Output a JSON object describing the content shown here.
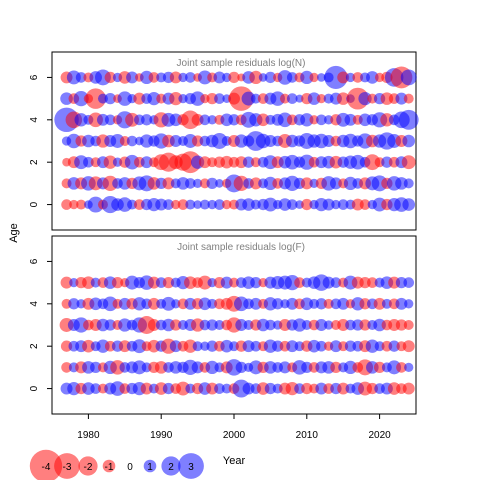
{
  "chart_data": [
    {
      "type": "scatter",
      "title": "Joint sample residuals log(N)",
      "xlim": [
        1975,
        2025
      ],
      "ylim": [
        -1.2,
        7.2
      ],
      "y_ticks": [
        "0",
        "2",
        "4",
        "6"
      ],
      "ages": [
        0,
        1,
        2,
        3,
        4,
        5,
        6
      ],
      "years": [
        1977,
        2024
      ],
      "encoding": "bubble size = |residual|; red = negative, blue = positive",
      "residuals": {
        "age6": [
          -0.9,
          1.2,
          0.7,
          -0.6,
          1.0,
          1.5,
          -0.8,
          0.5,
          -1.0,
          0.9,
          -0.4,
          1.1,
          -0.7,
          0.6,
          0.8,
          -0.9,
          0.5,
          0.7,
          -0.4,
          1.2,
          -0.6,
          0.9,
          0.5,
          -0.8,
          -0.3,
          1.0,
          -1.1,
          0.4,
          0.8,
          -0.5,
          1.3,
          0.7,
          -0.6,
          1.1,
          -0.5,
          0.4,
          0.6,
          2.6,
          -0.9,
          0.5,
          -0.7,
          0.6,
          1.0,
          -0.5,
          -0.8,
          1.9,
          -2.4,
          1.5
        ],
        "age5": [
          1.0,
          -0.7,
          1.4,
          -0.5,
          -2.2,
          0.6,
          0.8,
          -0.4,
          1.3,
          0.5,
          -0.9,
          0.7,
          1.1,
          -0.6,
          0.9,
          -1.1,
          0.5,
          0.8,
          1.3,
          -0.5,
          -0.8,
          0.7,
          0.4,
          -0.9,
          -2.8,
          1.2,
          0.6,
          -0.7,
          0.9,
          1.3,
          -0.6,
          0.7,
          0.3,
          -0.8,
          1.0,
          -0.5,
          0.6,
          0.9,
          -1.0,
          0.4,
          -2.4,
          1.1,
          -0.6,
          0.8,
          -1.0,
          -0.7,
          0.9,
          -0.6
        ],
        "age4": [
          2.8,
          -1.6,
          1.1,
          0.6,
          -1.3,
          0.9,
          0.7,
          -0.5,
          1.7,
          -1.2,
          0.7,
          0.8,
          0.5,
          -1.4,
          1.2,
          1.0,
          -0.8,
          -1.9,
          -0.9,
          0.7,
          0.5,
          -0.6,
          1.0,
          0.8,
          -0.7,
          1.5,
          1.1,
          -1.0,
          0.6,
          0.9,
          1.3,
          -0.7,
          0.8,
          1.1,
          -0.5,
          0.7,
          0.5,
          -0.8,
          1.2,
          0.9,
          -0.6,
          1.0,
          0.8,
          1.4,
          -1.1,
          0.7,
          1.6,
          2.1
        ],
        "age3": [
          0.5,
          1.3,
          -0.8,
          1.0,
          0.7,
          -1.1,
          0.9,
          1.2,
          -0.6,
          0.7,
          0.4,
          1.1,
          0.8,
          1.4,
          -1.0,
          0.9,
          0.6,
          1.2,
          -0.8,
          0.7,
          1.0,
          1.5,
          0.6,
          -0.9,
          1.1,
          0.8,
          2.1,
          1.3,
          0.9,
          0.7,
          -1.2,
          1.0,
          0.8,
          1.5,
          1.1,
          1.3,
          0.9,
          -0.7,
          1.0,
          1.3,
          0.8,
          1.4,
          -1.0,
          1.1,
          1.7,
          1.2,
          -0.9,
          1.0
        ],
        "age2": [
          -0.4,
          -0.9,
          1.2,
          0.7,
          -0.6,
          0.9,
          -1.1,
          0.5,
          -0.8,
          1.3,
          -0.7,
          0.9,
          -0.6,
          -1.5,
          -2.0,
          -1.2,
          -1.7,
          -2.4,
          1.1,
          -0.9,
          -0.6,
          -0.8,
          -1.0,
          -0.7,
          -0.9,
          0.8,
          -0.6,
          0.7,
          1.2,
          -0.9,
          1.0,
          1.3,
          0.8,
          1.4,
          -0.7,
          0.9,
          1.0,
          -1.0,
          0.8,
          1.1,
          1.3,
          0.7,
          -1.5,
          -0.6,
          0.8,
          -0.7,
          0.9,
          -1.2
        ],
        "age1": [
          -0.6,
          1.0,
          -0.9,
          1.3,
          -1.2,
          0.9,
          -1.4,
          0.7,
          1.0,
          -0.8,
          1.2,
          1.5,
          -1.0,
          0.8,
          -0.9,
          0.6,
          1.0,
          0.7,
          0.5,
          -0.6,
          0.8,
          0.4,
          -0.5,
          1.8,
          -1.4,
          0.7,
          -0.9,
          0.6,
          1.1,
          -0.7,
          0.9,
          1.4,
          0.8,
          -0.9,
          0.5,
          -0.8,
          1.3,
          0.9,
          -0.6,
          1.1,
          0.7,
          -0.9,
          1.2,
          1.5,
          -0.8,
          1.3,
          1.0,
          0.6
        ],
        "age0": [
          -0.7,
          -0.5,
          -0.6,
          0.4,
          1.5,
          -0.6,
          1.7,
          1.0,
          1.3,
          0.6,
          -0.7,
          0.8,
          1.1,
          0.9,
          0.7,
          -0.5,
          -0.7,
          0.6,
          0.4,
          0.6,
          0.5,
          0.7,
          -0.5,
          -0.6,
          0.9,
          1.0,
          0.6,
          0.8,
          1.2,
          0.5,
          1.0,
          0.7,
          0.4,
          -0.8,
          0.5,
          1.1,
          0.9,
          0.5,
          0.7,
          0.6,
          -0.9,
          -0.7,
          0.5,
          1.2,
          -0.8,
          1.1,
          1.3,
          1.0
        ]
      }
    },
    {
      "type": "scatter",
      "title": "Joint sample residuals log(F)",
      "xlim": [
        1975,
        2025
      ],
      "ylim": [
        -1.2,
        7.2
      ],
      "y_ticks": [
        "0",
        "2",
        "4",
        "6"
      ],
      "ages": [
        0,
        1,
        2,
        3,
        4,
        5
      ],
      "years": [
        1977,
        2024
      ],
      "encoding": "bubble size = |residual|; red = negative, blue = positive",
      "residuals": {
        "age5": [
          -0.9,
          0.5,
          -0.8,
          -1.0,
          0.6,
          -0.7,
          1.0,
          -0.8,
          -0.5,
          1.2,
          0.8,
          1.3,
          -0.9,
          0.7,
          -0.8,
          0.6,
          1.1,
          -1.0,
          -0.7,
          -1.2,
          0.5,
          -0.8,
          0.9,
          -0.6,
          0.7,
          1.0,
          0.8,
          -0.5,
          0.9,
          1.1,
          1.2,
          1.4,
          -0.7,
          0.6,
          1.0,
          1.6,
          0.9,
          0.7,
          -0.6,
          1.2,
          -0.9,
          -0.8,
          -0.7,
          0.6,
          1.0,
          -0.9,
          0.8,
          0.7
        ],
        "age4": [
          -0.6,
          0.8,
          0.5,
          -0.9,
          1.0,
          0.7,
          1.3,
          -0.6,
          0.9,
          -0.8,
          1.1,
          0.7,
          -0.9,
          0.6,
          1.2,
          0.5,
          -0.7,
          0.9,
          -0.8,
          1.0,
          0.6,
          -0.7,
          -0.9,
          -1.5,
          1.3,
          0.7,
          0.9,
          -0.6,
          1.1,
          0.8,
          0.5,
          0.9,
          -0.7,
          1.0,
          0.6,
          0.8,
          -0.6,
          0.7,
          0.9,
          -0.5,
          1.1,
          -0.8,
          0.7,
          -0.9,
          0.6,
          -0.7,
          0.9,
          0.5
        ],
        "age3": [
          -1.2,
          0.9,
          1.4,
          -0.7,
          -0.9,
          1.0,
          0.8,
          -0.6,
          1.1,
          0.7,
          1.4,
          -1.8,
          -0.9,
          0.7,
          1.0,
          -0.8,
          0.6,
          0.9,
          -1.1,
          0.7,
          0.8,
          0.6,
          -0.7,
          -1.4,
          0.9,
          0.6,
          -0.8,
          1.0,
          0.7,
          0.5,
          -0.9,
          0.8,
          1.1,
          0.6,
          -0.7,
          0.9,
          0.5,
          -0.6,
          -0.9,
          0.7,
          0.8,
          -0.8,
          0.6,
          1.0,
          -0.7,
          -0.9,
          -0.8,
          -0.6
        ],
        "age2": [
          -0.8,
          0.7,
          0.9,
          -1.0,
          0.6,
          1.1,
          -0.7,
          0.8,
          -0.9,
          0.7,
          1.2,
          -0.6,
          -1.0,
          0.8,
          -1.4,
          0.9,
          -0.7,
          -1.1,
          0.6,
          0.5,
          0.8,
          -0.7,
          1.0,
          0.6,
          -0.8,
          0.9,
          0.7,
          -0.6,
          1.1,
          0.8,
          -0.7,
          0.9,
          0.6,
          -0.8,
          1.0,
          0.7,
          -0.5,
          0.9,
          -0.6,
          0.8,
          0.7,
          -0.9,
          1.1,
          0.6,
          -0.7,
          0.8,
          -0.6,
          -0.9
        ],
        "age1": [
          -0.7,
          0.6,
          -0.9,
          1.0,
          0.8,
          -0.6,
          1.1,
          -1.3,
          0.7,
          0.9,
          1.2,
          0.6,
          -0.8,
          -1.0,
          0.7,
          1.0,
          0.8,
          1.4,
          0.9,
          -0.7,
          1.1,
          0.6,
          -0.9,
          1.6,
          0.8,
          0.5,
          1.2,
          -0.8,
          1.0,
          0.7,
          0.9,
          -0.6,
          1.3,
          0.8,
          -0.7,
          0.9,
          1.0,
          -0.8,
          0.6,
          1.1,
          -0.7,
          -1.5,
          1.0,
          -0.8,
          0.6,
          1.2,
          -0.7,
          0.5
        ],
        "age0": [
          0.9,
          1.1,
          -0.8,
          1.0,
          0.7,
          -0.6,
          0.9,
          1.3,
          -0.7,
          0.8,
          1.1,
          -0.9,
          0.6,
          -1.0,
          0.8,
          -0.7,
          -1.2,
          0.6,
          -0.8,
          1.0,
          -0.9,
          0.7,
          0.6,
          -0.7,
          1.8,
          0.9,
          0.7,
          -1.0,
          0.8,
          0.6,
          -0.9,
          -1.1,
          0.7,
          -0.8,
          -0.6,
          0.9,
          -0.7,
          0.8,
          -0.9,
          0.6,
          1.0,
          -1.2,
          -0.8,
          0.7,
          0.9,
          -1.0,
          -0.7,
          -0.9
        ]
      }
    }
  ],
  "x_ticks": [
    "1980",
    "1990",
    "2000",
    "2010",
    "2020"
  ],
  "x_tick_values": [
    1980,
    1990,
    2000,
    2010,
    2020
  ],
  "xlabel": "Year",
  "ylabel": "Age",
  "legend": {
    "entries": [
      {
        "label": "-4",
        "value": -4
      },
      {
        "label": "-3",
        "value": -3
      },
      {
        "label": "-2",
        "value": -2
      },
      {
        "label": "-1",
        "value": -1
      },
      {
        "label": "0",
        "value": 0
      },
      {
        "label": "1",
        "value": 1
      },
      {
        "label": "2",
        "value": 2
      },
      {
        "label": "3",
        "value": 3
      }
    ],
    "placement": "bottom-left"
  },
  "colors": {
    "negative": "#ff0000",
    "positive": "#0000ff",
    "axis": "#000000",
    "title": "#808080"
  }
}
